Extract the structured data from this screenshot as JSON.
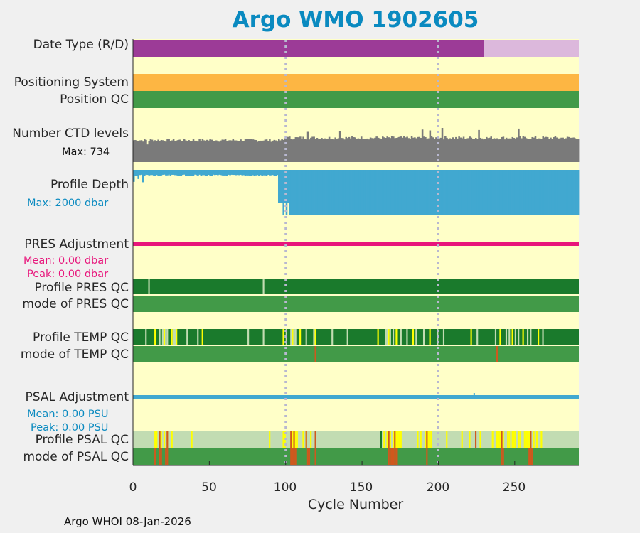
{
  "title": "Argo WMO 1902605",
  "footer": "Argo WHOI 08-Jan-2026",
  "colors": {
    "background": "#ffffc8",
    "figure_bg": "#f0f0f0",
    "title": "#0a8ac0",
    "purple": "#9c3b97",
    "light_purple": "#dcb8dc",
    "orange": "#fdb643",
    "good_green": "#1a7a2c",
    "mode_green": "#429a48",
    "pale_green": "#c2dcb2",
    "gray_bars": "#7a7a7a",
    "profile_blue": "#41a8d0",
    "magenta": "#e8157b",
    "psal_blue": "#41a8d0",
    "yellow": "#ffff00",
    "red": "#d0581d"
  },
  "rows": {
    "date_type": "Date Type (R/D)",
    "positioning": "Positioning System",
    "position_qc": "Position QC",
    "ctd_levels": "Number CTD levels",
    "profile_depth": "Profile Depth",
    "pres_adjust": "PRES Adjustment",
    "profile_pres_qc": "Profile PRES QC",
    "mode_pres_qc": "mode of PRES QC",
    "profile_temp_qc": "Profile TEMP QC",
    "mode_temp_qc": "mode of TEMP QC",
    "psal_adjust": "PSAL Adjustment",
    "profile_psal_qc": "Profile PSAL QC",
    "mode_psal_qc": "mode of PSAL QC"
  },
  "annotations": {
    "ctd_max": "Max: 734",
    "depth_max": "Max: 2000 dbar",
    "pres_mean": "Mean: 0.00 dbar",
    "pres_peak": "Peak: 0.00 dbar",
    "psal_mean": "Mean: 0.00 PSU",
    "psal_peak": "Peak: 0.00 PSU"
  },
  "chart_data": {
    "type": "bar",
    "xlabel": "Cycle Number",
    "xlim": [
      0,
      292
    ],
    "xticks": [
      "0",
      "50",
      "100",
      "150",
      "200",
      "250"
    ],
    "xtick_values": [
      0,
      50,
      100,
      150,
      200,
      250
    ],
    "vlines": [
      100,
      200
    ],
    "date_type": {
      "realtime_until_cycle": 230,
      "total_cycles": 292
    },
    "ctd_levels": {
      "max": 734,
      "typical_before_100": 470,
      "typical_after_100": 520
    },
    "profile_depth": {
      "max_dbar": 2000,
      "shallow_until_cycle": 95,
      "deep_from_cycle": 103
    },
    "pres_qc_flag_cycles": [
      10,
      85
    ],
    "temp_qc_flag_cycles": [
      8,
      14,
      17,
      19,
      20,
      21,
      22,
      25,
      26,
      27,
      28,
      35,
      42,
      45,
      75,
      85,
      98,
      100,
      103,
      104,
      105,
      106,
      109,
      113,
      118,
      119,
      130,
      140,
      160,
      165,
      166,
      167,
      168,
      170,
      172,
      175,
      179,
      183,
      185,
      190,
      194,
      199,
      203,
      221,
      225,
      237,
      240,
      244,
      246,
      248,
      250,
      252,
      255,
      258,
      260,
      265,
      268
    ],
    "temp_mode_red_cycles": [
      119,
      238
    ],
    "psal_adjust_mark_cycle": 223,
    "psal_qc_yellow_cycles": [
      14,
      15,
      17,
      18,
      20,
      22,
      25,
      38,
      89,
      98,
      99,
      103,
      104,
      105,
      106,
      107,
      111,
      113,
      116,
      119,
      164,
      166,
      167,
      168,
      170,
      171,
      172,
      173,
      174,
      175,
      186,
      188,
      191,
      192,
      193,
      194,
      195,
      205,
      215,
      220,
      227,
      235,
      238,
      239,
      240,
      241,
      242,
      245,
      246,
      248,
      249,
      250,
      252,
      253,
      256,
      257,
      258,
      259,
      260,
      262,
      264,
      267
    ],
    "psal_qc_red_cycles": [
      17,
      22,
      103,
      105,
      113,
      119,
      167,
      171,
      192,
      224,
      241,
      260
    ],
    "psal_qc_green_cycles": [
      162
    ],
    "psal_mode_red_cycles": [
      14,
      17,
      18,
      21,
      22,
      103,
      104,
      105,
      106,
      114,
      115,
      119,
      167,
      168,
      169,
      170,
      171,
      172,
      192,
      241,
      242,
      259,
      260,
      261
    ]
  }
}
